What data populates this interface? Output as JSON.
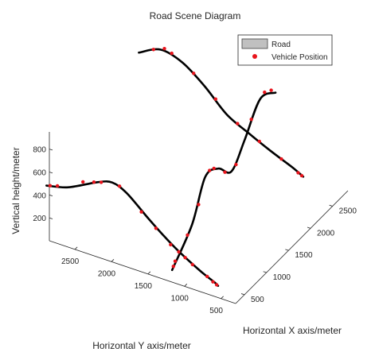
{
  "chart_data": {
    "type": "line3d",
    "title": "Road Scene Diagram",
    "xlabel": "Horizontal X axis/meter",
    "ylabel": "Horizontal Y axis/meter",
    "zlabel": "Vertical height/meter",
    "x_ticks": [
      500,
      1000,
      1500,
      2000,
      2500
    ],
    "y_ticks": [
      2500,
      2000,
      1500,
      1000,
      500
    ],
    "z_ticks": [
      200,
      400,
      600,
      800
    ],
    "xlim": [
      300,
      2850
    ],
    "ylim": [
      300,
      2850
    ],
    "zlim": [
      0,
      950
    ],
    "grid": false,
    "legend_position": "top-right",
    "legend": [
      {
        "label": "Road",
        "marker": "rectangle",
        "color": "#c0c0c0"
      },
      {
        "label": "Vehicle Position",
        "marker": "dot",
        "color": "#e8141c"
      }
    ],
    "series": [
      {
        "points": [
          [
            150,
            2800,
            550
          ],
          [
            150,
            2500,
            600
          ],
          [
            150,
            2100,
            730
          ],
          [
            150,
            1900,
            770
          ],
          [
            150,
            1700,
            720
          ],
          [
            150,
            1400,
            560
          ],
          [
            150,
            1200,
            460
          ],
          [
            150,
            1000,
            370
          ],
          [
            150,
            700,
            260
          ],
          [
            150,
            500,
            200
          ],
          [
            150,
            450,
            180
          ]
        ],
        "markers": [
          [
            150,
            2750,
            560
          ],
          [
            150,
            2650,
            580
          ],
          [
            150,
            2300,
            690
          ],
          [
            150,
            2150,
            720
          ],
          [
            150,
            2050,
            740
          ],
          [
            150,
            1800,
            760
          ],
          [
            150,
            1500,
            600
          ],
          [
            150,
            1300,
            500
          ],
          [
            150,
            1100,
            400
          ],
          [
            150,
            900,
            330
          ],
          [
            150,
            800,
            290
          ],
          [
            150,
            600,
            230
          ],
          [
            150,
            520,
            200
          ],
          [
            150,
            470,
            185
          ]
        ]
      },
      {
        "points": [
          [
            2250,
            2800,
            900
          ],
          [
            2250,
            2500,
            990
          ],
          [
            2250,
            2200,
            940
          ],
          [
            2250,
            1900,
            800
          ],
          [
            2250,
            1600,
            620
          ],
          [
            2250,
            1300,
            520
          ],
          [
            2250,
            1000,
            430
          ],
          [
            2250,
            700,
            350
          ],
          [
            2250,
            550,
            300
          ]
        ],
        "markers": [
          [
            2250,
            2600,
            970
          ],
          [
            2250,
            2450,
            1010
          ],
          [
            2250,
            2350,
            990
          ],
          [
            2250,
            2050,
            880
          ],
          [
            2250,
            1750,
            720
          ],
          [
            2250,
            1450,
            570
          ],
          [
            2250,
            1150,
            480
          ],
          [
            2250,
            850,
            390
          ],
          [
            2250,
            620,
            320
          ],
          [
            2250,
            570,
            305
          ]
        ]
      },
      {
        "points": [
          [
            350,
            1200,
            80
          ],
          [
            800,
            1200,
            300
          ],
          [
            1100,
            1200,
            600
          ],
          [
            1400,
            1200,
            560
          ],
          [
            1700,
            1200,
            420
          ],
          [
            2000,
            1200,
            580
          ],
          [
            2350,
            1200,
            800
          ],
          [
            2700,
            1200,
            720
          ]
        ],
        "markers": [
          [
            380,
            1200,
            100
          ],
          [
            420,
            1200,
            130
          ],
          [
            500,
            1200,
            180
          ],
          [
            700,
            1200,
            250
          ],
          [
            950,
            1200,
            420
          ],
          [
            1200,
            1200,
            620
          ],
          [
            1300,
            1200,
            600
          ],
          [
            1550,
            1200,
            470
          ],
          [
            1800,
            1200,
            440
          ],
          [
            2150,
            1200,
            700
          ],
          [
            2450,
            1200,
            820
          ],
          [
            2600,
            1200,
            780
          ]
        ]
      }
    ]
  }
}
